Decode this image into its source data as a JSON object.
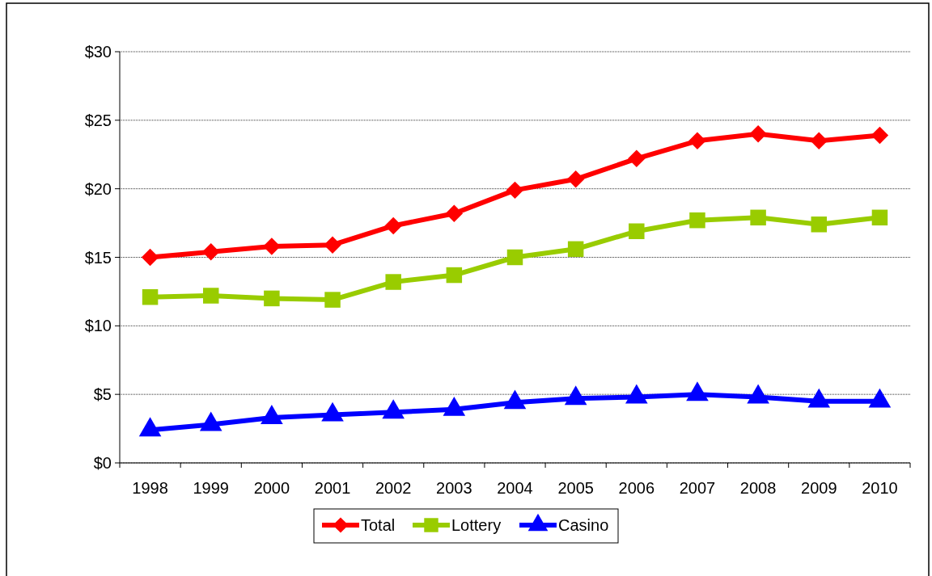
{
  "chart_data": {
    "type": "line",
    "categories": [
      "1998",
      "1999",
      "2000",
      "2001",
      "2002",
      "2003",
      "2004",
      "2005",
      "2006",
      "2007",
      "2008",
      "2009",
      "2010"
    ],
    "series": [
      {
        "name": "Total",
        "color": "#ff0000",
        "marker": "diamond",
        "values": [
          15.0,
          15.4,
          15.8,
          15.9,
          17.3,
          18.2,
          19.9,
          20.7,
          22.2,
          23.5,
          24.0,
          23.5,
          23.9
        ]
      },
      {
        "name": "Lottery",
        "color": "#99cc00",
        "marker": "square",
        "values": [
          12.1,
          12.2,
          12.0,
          11.9,
          13.2,
          13.7,
          15.0,
          15.6,
          16.9,
          17.7,
          17.9,
          17.4,
          17.9
        ]
      },
      {
        "name": "Casino",
        "color": "#0000ff",
        "marker": "triangle",
        "values": [
          2.4,
          2.8,
          3.3,
          3.5,
          3.7,
          3.9,
          4.4,
          4.7,
          4.8,
          5.0,
          4.8,
          4.5,
          4.5
        ]
      }
    ],
    "ylim": [
      0,
      30
    ],
    "yticks": [
      {
        "value": 0,
        "label": "$0"
      },
      {
        "value": 5,
        "label": "$5"
      },
      {
        "value": 10,
        "label": "$10"
      },
      {
        "value": 15,
        "label": "$15"
      },
      {
        "value": 20,
        "label": "$20"
      },
      {
        "value": 25,
        "label": "$25"
      },
      {
        "value": 30,
        "label": "$30"
      }
    ],
    "grid": "y",
    "legend": "bottom"
  }
}
